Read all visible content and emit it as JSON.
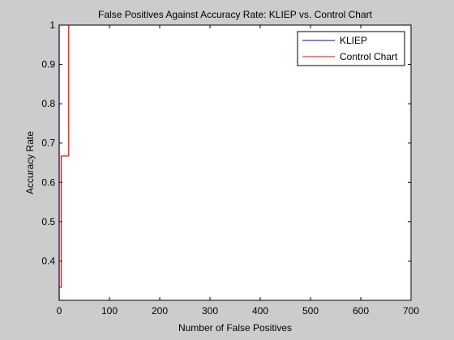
{
  "chart_data": {
    "type": "line",
    "title": "False Positives Against Accuracy Rate: KLIEP vs. Control Chart",
    "xlabel": "Number of False Positives",
    "ylabel": "Accuracy Rate",
    "xlim": [
      0,
      700
    ],
    "ylim": [
      0.3,
      1.0
    ],
    "xticks": [
      0,
      100,
      200,
      300,
      400,
      500,
      600,
      700
    ],
    "yticks": [
      0.4,
      0.5,
      0.6,
      0.7,
      0.8,
      0.9,
      1.0
    ],
    "xtick_labels": [
      "0",
      "100",
      "200",
      "300",
      "400",
      "500",
      "600",
      "700"
    ],
    "ytick_labels": [
      "0.4",
      "0.5",
      "0.6",
      "0.7",
      "0.8",
      "0.9",
      "1"
    ],
    "legend_position": "top-right",
    "grid": false,
    "series": [
      {
        "name": "KLIEP",
        "color": "#0000ff",
        "x": [
          0,
          0,
          1,
          1
        ],
        "y": [
          0.3,
          1.0,
          1.0,
          1.0
        ]
      },
      {
        "name": "Control Chart",
        "color": "#ff0000",
        "x": [
          0,
          4,
          4,
          19,
          19
        ],
        "y": [
          0.333,
          0.333,
          0.667,
          0.667,
          1.0
        ]
      }
    ]
  }
}
